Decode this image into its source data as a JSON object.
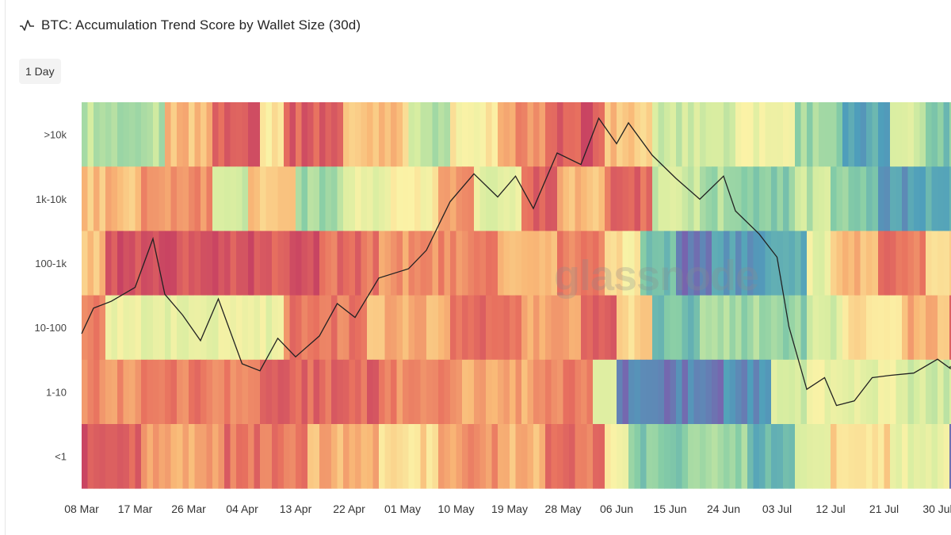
{
  "header": {
    "title": "BTC: Accumulation Trend Score by Wallet Size (30d)",
    "icon": "line-chart-icon"
  },
  "controls": {
    "resolution": "1 Day"
  },
  "watermark": "glassnode",
  "colors": {
    "scale": [
      "#c33c63",
      "#e8715f",
      "#f9b977",
      "#fbf2a6",
      "#d6eda1",
      "#86cda6",
      "#4f9fbb",
      "#7764ae"
    ],
    "price_line": "#222222"
  },
  "chart_data": {
    "type": "heatmap",
    "title": "BTC: Accumulation Trend Score by Wallet Size (30d)",
    "rows": [
      ">10k",
      "1k-10k",
      "100-1k",
      "10-100",
      "1-10",
      "<1"
    ],
    "x_ticks": [
      "08 Mar",
      "17 Mar",
      "26 Mar",
      "04 Apr",
      "13 Apr",
      "22 Apr",
      "01 May",
      "10 May",
      "19 May",
      "28 May",
      "06 Jun",
      "15 Jun",
      "24 Jun",
      "03 Jul",
      "12 Jul",
      "21 Jul",
      "30 Jul"
    ],
    "x_start": "2024-03-08",
    "days": 151,
    "segments": [
      [
        [
          0,
          14,
          0.62
        ],
        [
          14,
          22,
          0.3
        ],
        [
          22,
          30,
          0.1
        ],
        [
          30,
          34,
          0.42
        ],
        [
          34,
          44,
          0.1
        ],
        [
          44,
          55,
          0.32
        ],
        [
          55,
          62,
          0.62
        ],
        [
          62,
          70,
          0.42
        ],
        [
          70,
          78,
          0.22
        ],
        [
          78,
          88,
          0.08
        ],
        [
          88,
          96,
          0.32
        ],
        [
          96,
          110,
          0.58
        ],
        [
          110,
          120,
          0.48
        ],
        [
          120,
          128,
          0.68
        ],
        [
          128,
          136,
          0.82
        ],
        [
          136,
          142,
          0.58
        ],
        [
          142,
          151,
          0.74
        ]
      ],
      [
        [
          0,
          10,
          0.3
        ],
        [
          10,
          22,
          0.2
        ],
        [
          22,
          28,
          0.58
        ],
        [
          28,
          36,
          0.32
        ],
        [
          36,
          44,
          0.66
        ],
        [
          44,
          52,
          0.5
        ],
        [
          52,
          60,
          0.42
        ],
        [
          60,
          66,
          0.22
        ],
        [
          66,
          74,
          0.52
        ],
        [
          74,
          80,
          0.12
        ],
        [
          80,
          88,
          0.3
        ],
        [
          88,
          96,
          0.12
        ],
        [
          96,
          104,
          0.58
        ],
        [
          104,
          112,
          0.66
        ],
        [
          112,
          120,
          0.7
        ],
        [
          120,
          126,
          0.6
        ],
        [
          126,
          134,
          0.72
        ],
        [
          134,
          140,
          0.86
        ],
        [
          140,
          151,
          0.8
        ]
      ],
      [
        [
          0,
          4,
          0.3
        ],
        [
          4,
          30,
          0.06
        ],
        [
          30,
          40,
          0.08
        ],
        [
          40,
          50,
          0.14
        ],
        [
          50,
          60,
          0.22
        ],
        [
          60,
          70,
          0.18
        ],
        [
          70,
          80,
          0.28
        ],
        [
          80,
          88,
          0.16
        ],
        [
          88,
          94,
          0.4
        ],
        [
          94,
          100,
          0.76
        ],
        [
          100,
          106,
          0.95
        ],
        [
          106,
          114,
          0.86
        ],
        [
          114,
          122,
          0.82
        ],
        [
          122,
          126,
          0.5
        ],
        [
          126,
          134,
          0.3
        ],
        [
          134,
          142,
          0.16
        ],
        [
          142,
          151,
          0.36
        ]
      ],
      [
        [
          0,
          4,
          0.14
        ],
        [
          4,
          34,
          0.5
        ],
        [
          34,
          48,
          0.16
        ],
        [
          48,
          62,
          0.28
        ],
        [
          62,
          74,
          0.14
        ],
        [
          74,
          84,
          0.24
        ],
        [
          84,
          90,
          0.12
        ],
        [
          90,
          96,
          0.36
        ],
        [
          96,
          104,
          0.76
        ],
        [
          104,
          114,
          0.66
        ],
        [
          114,
          122,
          0.7
        ],
        [
          122,
          128,
          0.56
        ],
        [
          128,
          138,
          0.4
        ],
        [
          138,
          146,
          0.28
        ],
        [
          146,
          151,
          0.08
        ]
      ],
      [
        [
          0,
          10,
          0.2
        ],
        [
          10,
          30,
          0.16
        ],
        [
          30,
          50,
          0.12
        ],
        [
          50,
          62,
          0.2
        ],
        [
          62,
          76,
          0.26
        ],
        [
          76,
          86,
          0.16
        ],
        [
          86,
          90,
          0.5
        ],
        [
          90,
          108,
          0.94
        ],
        [
          108,
          116,
          0.9
        ],
        [
          116,
          122,
          0.56
        ],
        [
          122,
          128,
          0.48
        ],
        [
          128,
          138,
          0.5
        ],
        [
          138,
          146,
          0.56
        ],
        [
          146,
          151,
          0.6
        ]
      ],
      [
        [
          0,
          10,
          0.08
        ],
        [
          10,
          24,
          0.24
        ],
        [
          24,
          38,
          0.14
        ],
        [
          38,
          50,
          0.28
        ],
        [
          50,
          60,
          0.36
        ],
        [
          60,
          70,
          0.22
        ],
        [
          70,
          78,
          0.28
        ],
        [
          78,
          88,
          0.14
        ],
        [
          88,
          92,
          0.44
        ],
        [
          92,
          102,
          0.72
        ],
        [
          102,
          112,
          0.68
        ],
        [
          112,
          120,
          0.78
        ],
        [
          120,
          126,
          0.5
        ],
        [
          126,
          136,
          0.36
        ],
        [
          136,
          146,
          0.5
        ],
        [
          146,
          151,
          0.95
        ]
      ]
    ],
    "price_overlay": [
      [
        0,
        0.39
      ],
      [
        2,
        0.5
      ],
      [
        5,
        0.53
      ],
      [
        9,
        0.59
      ],
      [
        12,
        0.8
      ],
      [
        14,
        0.56
      ],
      [
        17,
        0.47
      ],
      [
        20,
        0.36
      ],
      [
        23,
        0.54
      ],
      [
        27,
        0.26
      ],
      [
        30,
        0.23
      ],
      [
        33,
        0.37
      ],
      [
        36,
        0.29
      ],
      [
        40,
        0.38
      ],
      [
        43,
        0.52
      ],
      [
        46,
        0.46
      ],
      [
        50,
        0.63
      ],
      [
        55,
        0.67
      ],
      [
        58,
        0.75
      ],
      [
        62,
        0.96
      ],
      [
        66,
        1.08
      ],
      [
        70,
        0.98
      ],
      [
        73,
        1.07
      ],
      [
        76,
        0.93
      ],
      [
        80,
        1.17
      ],
      [
        84,
        1.12
      ],
      [
        87,
        1.32
      ],
      [
        90,
        1.21
      ],
      [
        92,
        1.3
      ],
      [
        96,
        1.16
      ],
      [
        100,
        1.06
      ],
      [
        104,
        0.97
      ],
      [
        108,
        1.07
      ],
      [
        110,
        0.92
      ],
      [
        114,
        0.82
      ],
      [
        117,
        0.72
      ],
      [
        119,
        0.42
      ],
      [
        122,
        0.15
      ],
      [
        125,
        0.2
      ],
      [
        127,
        0.08
      ],
      [
        130,
        0.1
      ],
      [
        133,
        0.2
      ],
      [
        136,
        0.21
      ],
      [
        140,
        0.22
      ],
      [
        144,
        0.28
      ],
      [
        148,
        0.24
      ],
      [
        151,
        0.25
      ]
    ]
  }
}
